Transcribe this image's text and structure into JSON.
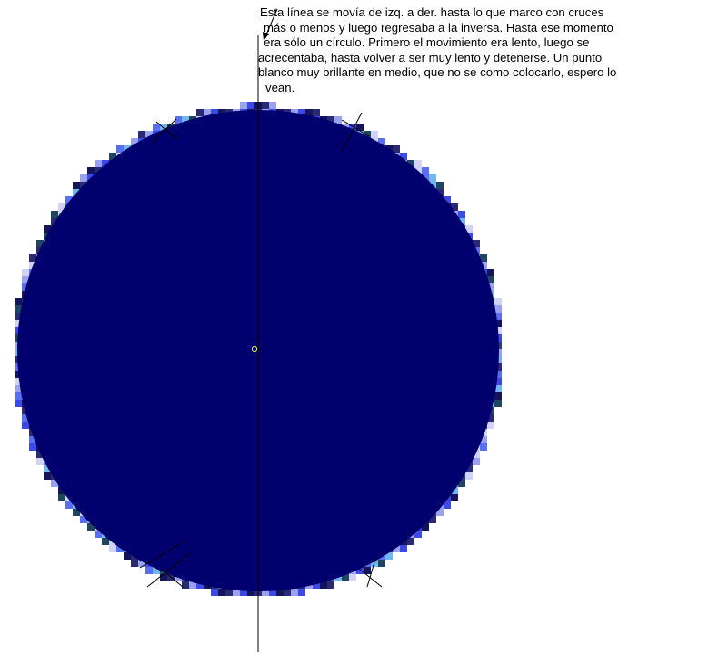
{
  "note": {
    "lines": [
      "Esta línea se movía de izq. a der. hasta lo que marco con cruces",
      "más o menos y luego regresaba a la inversa. Hasta ese momento",
      "era sólo un círculo. Primero el movimiento era lento, luego se",
      "acrecentaba, hasta volver a ser muy lento y detenerse. Un punto",
      "blanco muy brillante en medio, que no se como colocarlo, espero lo",
      "vean."
    ]
  },
  "colors": {
    "disc_fill": "#00006e",
    "edge_palette": [
      "#d2d2f5",
      "#9aa2f0",
      "#5a6ef0",
      "#3b49e6",
      "#6fb7ee",
      "#14145a",
      "#1e4660",
      "#2a2a72"
    ],
    "line": "#000000",
    "center_dot": "#e8e85a",
    "background": "#ffffff"
  }
}
